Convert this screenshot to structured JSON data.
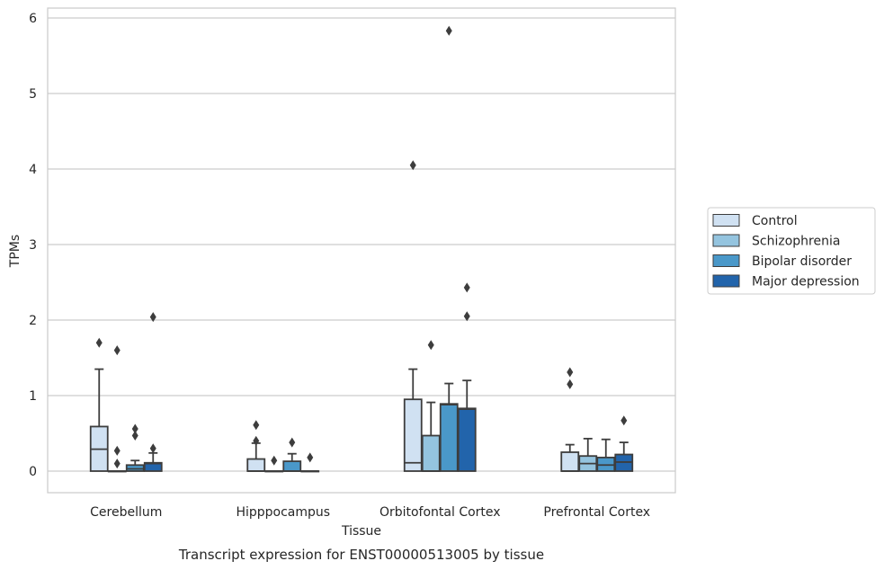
{
  "chart_data": {
    "type": "box",
    "title": "Transcript expression for ENST00000513005 by tissue",
    "xlabel": "Tissue",
    "ylabel": "TPMs",
    "ylim": [
      -0.28,
      6.12
    ],
    "yticks": [
      0,
      1,
      2,
      3,
      4,
      5,
      6
    ],
    "grid": true,
    "legend_position": "right",
    "categories": [
      "Cerebellum",
      "Hipppocampus",
      "Orbitofontal Cortex",
      "Prefrontal Cortex"
    ],
    "series": [
      {
        "name": "Control",
        "color": "#d0e1f2",
        "boxes": [
          {
            "q1": 0,
            "median": 0.29,
            "q3": 0.59,
            "whisker_low": 0,
            "whisker_high": 1.35,
            "outliers": [
              1.7
            ]
          },
          {
            "q1": 0,
            "median": 0,
            "q3": 0.16,
            "whisker_low": 0,
            "whisker_high": 0.37,
            "outliers": [
              0.4,
              0.61
            ]
          },
          {
            "q1": 0,
            "median": 0.11,
            "q3": 0.95,
            "whisker_low": 0,
            "whisker_high": 1.35,
            "outliers": [
              4.05
            ]
          },
          {
            "q1": 0,
            "median": 0,
            "q3": 0.25,
            "whisker_low": 0,
            "whisker_high": 0.35,
            "outliers": [
              1.15,
              1.31
            ]
          }
        ]
      },
      {
        "name": "Schizophrenia",
        "color": "#94c4df",
        "boxes": [
          {
            "q1": 0,
            "median": 0,
            "q3": 0,
            "whisker_low": 0,
            "whisker_high": 0,
            "outliers": [
              0.1,
              0.27,
              1.6
            ]
          },
          {
            "q1": 0,
            "median": 0,
            "q3": 0,
            "whisker_low": 0,
            "whisker_high": 0,
            "outliers": [
              0.14
            ]
          },
          {
            "q1": 0,
            "median": 0,
            "q3": 0.47,
            "whisker_low": 0,
            "whisker_high": 0.91,
            "outliers": [
              1.67
            ]
          },
          {
            "q1": 0,
            "median": 0.1,
            "q3": 0.2,
            "whisker_low": 0,
            "whisker_high": 0.43,
            "outliers": []
          }
        ]
      },
      {
        "name": "Bipolar disorder",
        "color": "#4a98c9",
        "boxes": [
          {
            "q1": 0,
            "median": 0.03,
            "q3": 0.08,
            "whisker_low": 0,
            "whisker_high": 0.14,
            "outliers": [
              0.47,
              0.56
            ]
          },
          {
            "q1": 0,
            "median": 0,
            "q3": 0.13,
            "whisker_low": 0,
            "whisker_high": 0.23,
            "outliers": [
              0.38
            ]
          },
          {
            "q1": 0,
            "median": 0.88,
            "q3": 0.89,
            "whisker_low": 0,
            "whisker_high": 1.16,
            "outliers": [
              5.83
            ]
          },
          {
            "q1": 0,
            "median": 0.08,
            "q3": 0.18,
            "whisker_low": 0,
            "whisker_high": 0.42,
            "outliers": []
          }
        ]
      },
      {
        "name": "Major depression",
        "color": "#2264ab",
        "boxes": [
          {
            "q1": 0,
            "median": 0.1,
            "q3": 0.11,
            "whisker_low": 0,
            "whisker_high": 0.24,
            "outliers": [
              0.3,
              2.04
            ]
          },
          {
            "q1": 0,
            "median": 0,
            "q3": 0,
            "whisker_low": 0,
            "whisker_high": 0,
            "outliers": [
              0.18
            ]
          },
          {
            "q1": 0,
            "median": 0.82,
            "q3": 0.83,
            "whisker_low": 0,
            "whisker_high": 1.2,
            "outliers": [
              2.05,
              2.43
            ]
          },
          {
            "q1": 0,
            "median": 0.12,
            "q3": 0.22,
            "whisker_low": 0,
            "whisker_high": 0.38,
            "outliers": [
              0.67
            ]
          }
        ]
      }
    ]
  }
}
